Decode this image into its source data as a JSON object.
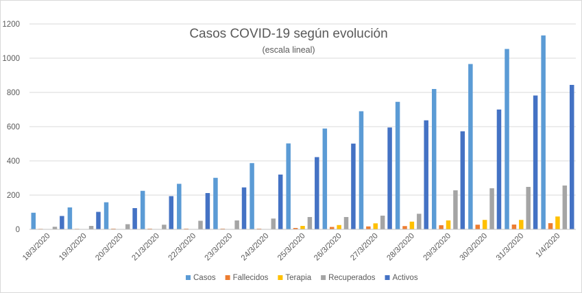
{
  "chart_data": {
    "type": "bar",
    "title": "Casos COVID-19 según evolución",
    "subtitle": "(escala lineal)",
    "xlabel": "",
    "ylabel": "",
    "ylim": [
      0,
      1200
    ],
    "yticks": [
      0,
      200,
      400,
      600,
      800,
      1000,
      1200
    ],
    "grid": true,
    "legend": "bottom",
    "categories": [
      "18/3/2020",
      "19/3/2020",
      "20/3/2020",
      "21/3/2020",
      "22/3/2020",
      "23/3/2020",
      "24/3/2020",
      "25/3/2020",
      "26/3/2020",
      "27/3/2020",
      "28/3/2020",
      "29/3/2020",
      "30/3/2020",
      "31/3/2020",
      "1/4/2020"
    ],
    "series": [
      {
        "name": "Casos",
        "color": "#5b9bd5",
        "values": [
          97,
          128,
          158,
          225,
          266,
          301,
          387,
          502,
          589,
          690,
          745,
          820,
          966,
          1054,
          1133
        ]
      },
      {
        "name": "Fallecidos",
        "color": "#ed7d31",
        "values": [
          3,
          3,
          4,
          4,
          4,
          4,
          4,
          8,
          14,
          17,
          19,
          24,
          27,
          28,
          36
        ]
      },
      {
        "name": "Terapia",
        "color": "#ffc000",
        "values": [
          0,
          0,
          0,
          0,
          0,
          0,
          0,
          20,
          25,
          35,
          45,
          52,
          55,
          55,
          75
        ]
      },
      {
        "name": "Recuperados",
        "color": "#a5a5a5",
        "values": [
          15,
          20,
          30,
          27,
          50,
          52,
          63,
          72,
          72,
          80,
          91,
          228,
          240,
          248,
          256
        ]
      },
      {
        "name": "Activos",
        "color": "#4472c4",
        "values": [
          78,
          102,
          124,
          194,
          212,
          245,
          320,
          422,
          501,
          595,
          637,
          573,
          700,
          782,
          844
        ]
      }
    ]
  }
}
